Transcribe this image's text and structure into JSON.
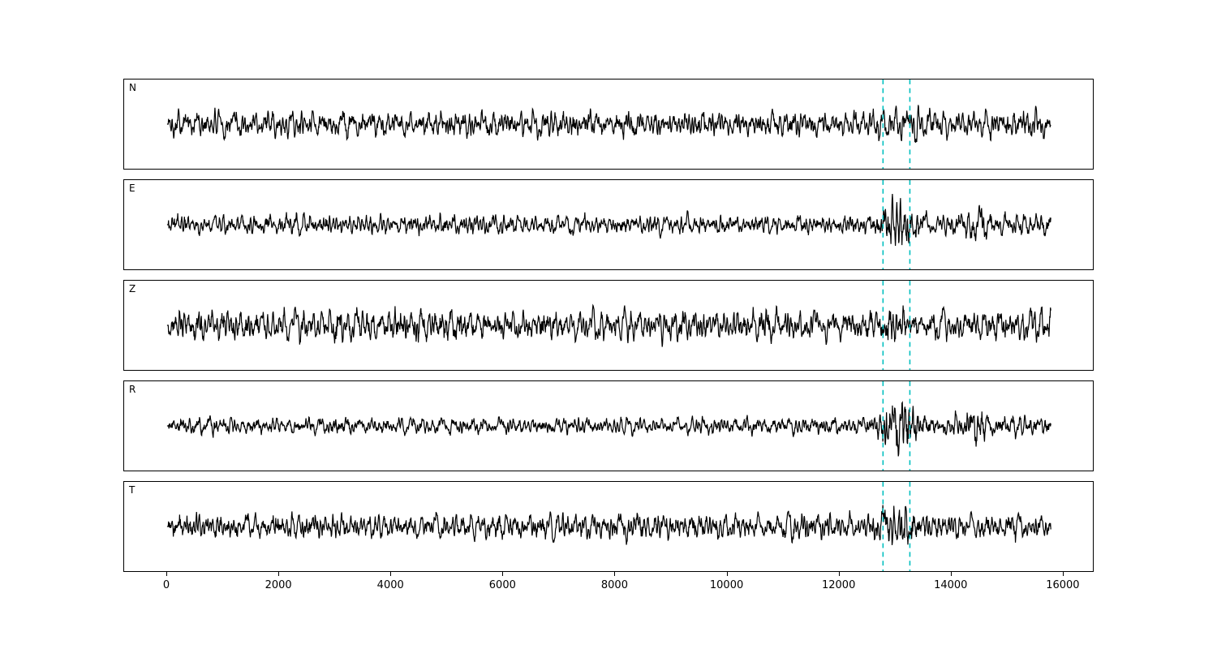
{
  "figure": {
    "background": "#ffffff"
  },
  "chart_data": {
    "type": "line",
    "subtype": "seismogram-multipanel",
    "title": "",
    "xlabel": "",
    "ylabel": "",
    "grid": false,
    "legend": null,
    "line_color": "#000000",
    "x_ticks": [
      0,
      2000,
      4000,
      6000,
      8000,
      10000,
      12000,
      14000,
      16000
    ],
    "xlim": [
      -770,
      16550
    ],
    "x_data_range": [
      0,
      15800
    ],
    "event_window": {
      "center": 13040,
      "sigma": 230
    },
    "vlines": {
      "x": [
        12800,
        13280
      ],
      "color": "#00bfbf",
      "style": "dashed"
    },
    "panels": [
      {
        "label": "N",
        "seed": 101,
        "amplitude": 0.72,
        "event_gain": 0.35,
        "coda_gain": 0.0,
        "spikes": []
      },
      {
        "label": "E",
        "seed": 202,
        "amplitude": 0.5,
        "event_gain": 2.3,
        "coda_gain": 0.45,
        "spikes": [
          {
            "x": 14480,
            "gain": 1.4
          }
        ]
      },
      {
        "label": "Z",
        "seed": 303,
        "amplitude": 0.84,
        "event_gain": 0.45,
        "coda_gain": 0.0,
        "spikes": []
      },
      {
        "label": "R",
        "seed": 404,
        "amplitude": 0.44,
        "event_gain": 2.8,
        "coda_gain": 0.6,
        "spikes": [
          {
            "x": 14480,
            "gain": 1.7
          }
        ]
      },
      {
        "label": "T",
        "seed": 505,
        "amplitude": 0.68,
        "event_gain": 1.0,
        "coda_gain": 0.0,
        "spikes": []
      }
    ]
  }
}
